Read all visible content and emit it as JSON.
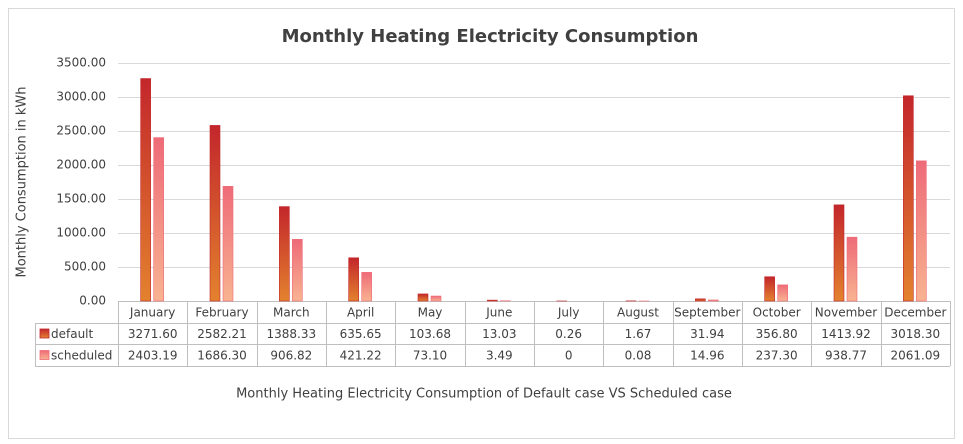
{
  "chart_data": {
    "type": "bar",
    "title": "Monthly Heating Electricity Consumption",
    "ylabel": "Monthly Consumption in kWh",
    "xlabel": "Monthly Heating Electricity Consumption of Default case VS Scheduled case",
    "categories": [
      "January",
      "February",
      "March",
      "April",
      "May",
      "June",
      "July",
      "August",
      "September",
      "October",
      "November",
      "December"
    ],
    "series": [
      {
        "name": "default",
        "color": "#c3262b",
        "color_bottom": "#e3822e",
        "values": [
          3271.6,
          2582.21,
          1388.33,
          635.65,
          103.68,
          13.03,
          0.26,
          1.67,
          31.94,
          356.8,
          1413.92,
          3018.3
        ],
        "value_labels": [
          "3271.60",
          "2582.21",
          "1388.33",
          "635.65",
          "103.68",
          "13.03",
          "0.26",
          "1.67",
          "31.94",
          "356.80",
          "1413.92",
          "3018.30"
        ]
      },
      {
        "name": "scheduled",
        "color": "#ee6b78",
        "color_bottom": "#f8b391",
        "values": [
          2403.19,
          1686.3,
          906.82,
          421.22,
          73.1,
          3.49,
          0,
          0.08,
          14.96,
          237.3,
          938.77,
          2061.09
        ],
        "value_labels": [
          "2403.19",
          "1686.30",
          "906.82",
          "421.22",
          "73.10",
          "3.49",
          "0",
          "0.08",
          "14.96",
          "237.30",
          "938.77",
          "2061.09"
        ]
      }
    ],
    "ylim": [
      0,
      3500
    ],
    "yticks": [
      {
        "value": 0,
        "label": "0.00"
      },
      {
        "value": 500,
        "label": "500.00"
      },
      {
        "value": 1000,
        "label": "1000.00"
      },
      {
        "value": 1500,
        "label": "1500.00"
      },
      {
        "value": 2000,
        "label": "2000.00"
      },
      {
        "value": 2500,
        "label": "2500.00"
      },
      {
        "value": 3000,
        "label": "3000.00"
      },
      {
        "value": 3500,
        "label": "3500.00"
      }
    ],
    "grid": true
  }
}
